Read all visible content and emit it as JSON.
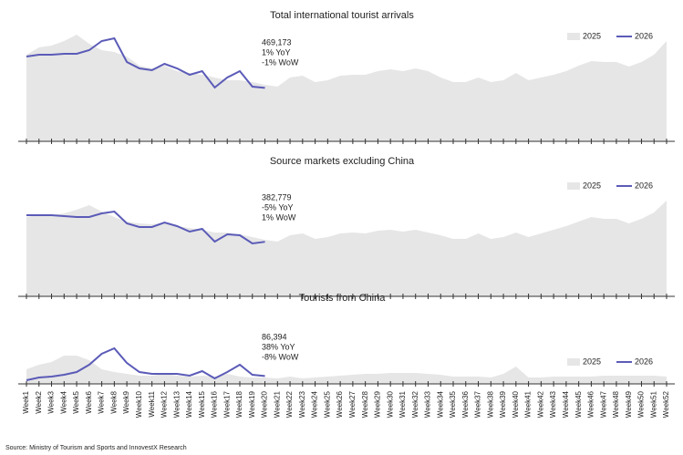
{
  "chart_data": [
    {
      "type": "area-line",
      "title": "Total international tourist arrivals",
      "annotations": [
        "469,173",
        "1% YoY",
        "-1% WoW"
      ],
      "ylim": [
        0,
        1000000
      ],
      "legend": "upper right",
      "series": [
        {
          "name": "2025",
          "color": "#e6e6e6",
          "values": [
            760000,
            824000,
            840000,
            880000,
            936000,
            856000,
            800000,
            784000,
            744000,
            664000,
            640000,
            664000,
            616000,
            600000,
            584000,
            560000,
            536000,
            536000,
            520000,
            496000,
            480000,
            560000,
            576000,
            520000,
            536000,
            576000,
            584000,
            584000,
            616000,
            632000,
            616000,
            640000,
            616000,
            560000,
            520000,
            520000,
            560000,
            520000,
            536000,
            600000,
            536000,
            560000,
            584000,
            616000,
            664000,
            704000,
            696000,
            696000,
            656000,
            696000,
            760000,
            880000
          ]
        },
        {
          "name": "2026",
          "color": "#5b5bb8",
          "values": [
            744000,
            760000,
            760000,
            768000,
            768000,
            800000,
            880000,
            904000,
            696000,
            640000,
            624000,
            680000,
            640000,
            584000,
            616000,
            472000,
            560000,
            616000,
            480000,
            469173,
            null,
            null,
            null,
            null,
            null,
            null,
            null,
            null,
            null,
            null,
            null,
            null,
            null,
            null,
            null,
            null,
            null,
            null,
            null,
            null,
            null,
            null,
            null,
            null,
            null,
            null,
            null,
            null,
            null,
            null,
            null,
            null
          ]
        }
      ]
    },
    {
      "type": "area-line",
      "title": "Source markets excluding China",
      "annotations": [
        "382,779",
        "-5% YoY",
        "1% WoW"
      ],
      "ylim": [
        0,
        800000
      ],
      "legend": "upper right",
      "series": [
        {
          "name": "2025",
          "color": "#e6e6e6",
          "values": [
            556800,
            569600,
            569600,
            582400,
            608000,
            640000,
            595200,
            556800,
            524800,
            512000,
            505600,
            518400,
            492800,
            480000,
            467200,
            448000,
            448000,
            435200,
            416000,
            396800,
            384000,
            428800,
            441600,
            403200,
            416000,
            441600,
            448000,
            441600,
            460800,
            467200,
            454400,
            467200,
            448000,
            428800,
            403200,
            403200,
            441600,
            403200,
            416000,
            448000,
            416000,
            441600,
            467200,
            492800,
            524800,
            556800,
            544000,
            544000,
            512000,
            544000,
            588800,
            672000
          ]
        },
        {
          "name": "2026",
          "color": "#5b5bb8",
          "values": [
            569600,
            569600,
            569600,
            563200,
            556800,
            556800,
            582400,
            595200,
            512000,
            486400,
            486400,
            518400,
            492800,
            454400,
            473600,
            384000,
            435200,
            428800,
            371200,
            382779,
            null,
            null,
            null,
            null,
            null,
            null,
            null,
            null,
            null,
            null,
            null,
            null,
            null,
            null,
            null,
            null,
            null,
            null,
            null,
            null,
            null,
            null,
            null,
            null,
            null,
            null,
            null,
            null,
            null,
            null,
            null,
            null
          ]
        }
      ]
    },
    {
      "type": "area-line",
      "title": "Tourists from China",
      "annotations": [
        "86,394",
        "38% YoY",
        "-8% WoW"
      ],
      "ylim": [
        0,
        600000
      ],
      "legend": "upper right",
      "categories": [
        "Week1",
        "Week2",
        "Week3",
        "Week4",
        "Week5",
        "Week6",
        "Week7",
        "Week8",
        "Week9",
        "Week10",
        "Week11",
        "Week12",
        "Week13",
        "Week14",
        "Week15",
        "Week16",
        "Week17",
        "Week18",
        "Week19",
        "Week20",
        "Week21",
        "Week22",
        "Week23",
        "Week24",
        "Week25",
        "Week26",
        "Week27",
        "Week28",
        "Week29",
        "Week30",
        "Week31",
        "Week32",
        "Week33",
        "Week34",
        "Week35",
        "Week36",
        "Week37",
        "Week38",
        "Week39",
        "Week40",
        "Week41",
        "Week42",
        "Week43",
        "Week44",
        "Week45",
        "Week46",
        "Week47",
        "Week48",
        "Week49",
        "Week50",
        "Week51",
        "Week52"
      ],
      "series": [
        {
          "name": "2025",
          "color": "#e6e6e6",
          "values": [
            160000,
            210000,
            240000,
            310000,
            310000,
            260000,
            160000,
            130000,
            110000,
            90000,
            90000,
            110000,
            90000,
            80000,
            90000,
            80000,
            110000,
            80000,
            70000,
            70000,
            60000,
            80000,
            60000,
            70000,
            80000,
            90000,
            100000,
            110000,
            110000,
            120000,
            120000,
            120000,
            110000,
            100000,
            80000,
            80000,
            80000,
            70000,
            110000,
            190000,
            70000,
            70000,
            80000,
            80000,
            80000,
            80000,
            90000,
            90000,
            90000,
            90000,
            90000,
            80000
          ]
        },
        {
          "name": "2026",
          "color": "#5b5bb8",
          "values": [
            40000,
            70000,
            80000,
            100000,
            130000,
            210000,
            330000,
            390000,
            230000,
            130000,
            110000,
            110000,
            110000,
            90000,
            140000,
            60000,
            130000,
            210000,
            100000,
            86394,
            null,
            null,
            null,
            null,
            null,
            null,
            null,
            null,
            null,
            null,
            null,
            null,
            null,
            null,
            null,
            null,
            null,
            null,
            null,
            null,
            null,
            null,
            null,
            null,
            null,
            null,
            null,
            null,
            null,
            null,
            null,
            null
          ]
        }
      ]
    }
  ],
  "source": "Source: Ministry of Tourism and Sports and InnovestX Research"
}
